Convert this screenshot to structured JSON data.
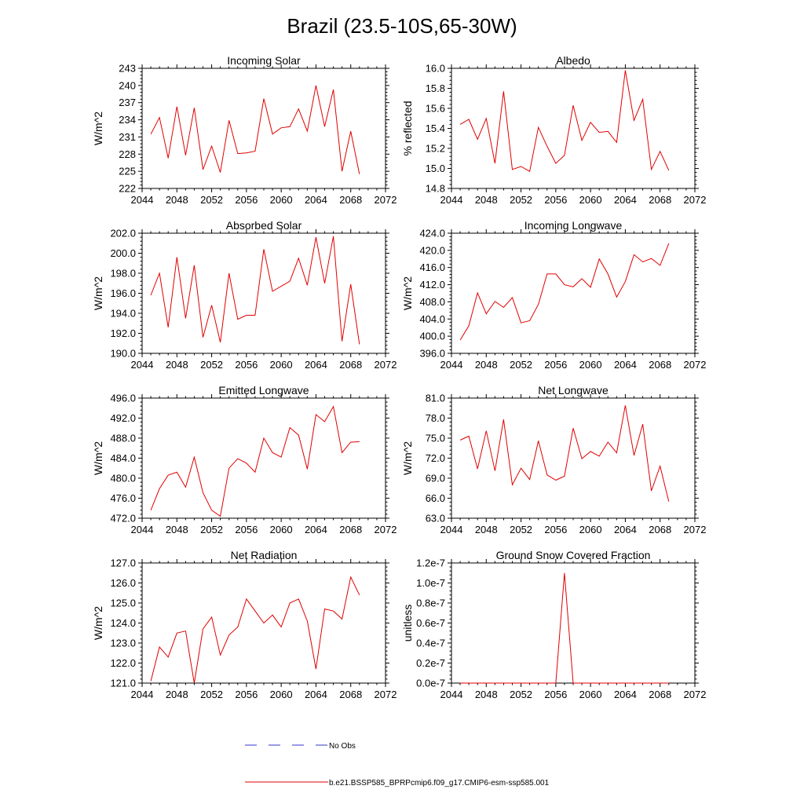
{
  "figure_title": "Brazil (23.5-10S,65-30W)",
  "legend": {
    "entries": [
      {
        "label": "No Obs",
        "color": "#3333cc",
        "dash": true
      },
      {
        "label": "b.e21.BSSP585_BPRPcmip6.f09_g17.CMIP6-esm-ssp585.001",
        "color": "#e00000",
        "dash": false
      }
    ]
  },
  "colors": {
    "series": "#e00000",
    "obs": "#3333cc"
  },
  "chart_data": [
    {
      "type": "line",
      "title": "Incoming Solar",
      "ylabel": "W/m^2",
      "xlim": [
        2044,
        2072
      ],
      "ylim": [
        222,
        243
      ],
      "xticks": [
        2044,
        2048,
        2052,
        2056,
        2060,
        2064,
        2068,
        2072
      ],
      "yticks": [
        "222",
        "225",
        "228",
        "231",
        "234",
        "237",
        "240",
        "243"
      ],
      "x": [
        2045,
        2046,
        2047,
        2048,
        2049,
        2050,
        2051,
        2052,
        2053,
        2054,
        2055,
        2056,
        2057,
        2058,
        2059,
        2060,
        2061,
        2062,
        2063,
        2064,
        2065,
        2066,
        2067,
        2068,
        2069
      ],
      "y": [
        231.5,
        234.4,
        227.3,
        236.3,
        227.8,
        236.1,
        225.3,
        229.4,
        224.8,
        233.9,
        228.1,
        228.2,
        228.5,
        237.7,
        231.5,
        232.6,
        232.8,
        235.9,
        232.0,
        240.0,
        232.8,
        239.3,
        225.0,
        232.0,
        224.5
      ]
    },
    {
      "type": "line",
      "title": "Albedo",
      "ylabel": "% reflected",
      "xlim": [
        2044,
        2072
      ],
      "ylim": [
        14.8,
        16.0
      ],
      "xticks": [
        2044,
        2048,
        2052,
        2056,
        2060,
        2064,
        2068,
        2072
      ],
      "yticks": [
        "14.8",
        "15.0",
        "15.2",
        "15.4",
        "15.6",
        "15.8",
        "16.0"
      ],
      "x": [
        2045,
        2046,
        2047,
        2048,
        2049,
        2050,
        2051,
        2052,
        2053,
        2054,
        2055,
        2056,
        2057,
        2058,
        2059,
        2060,
        2061,
        2062,
        2063,
        2064,
        2065,
        2066,
        2067,
        2068,
        2069
      ],
      "y": [
        15.44,
        15.49,
        15.29,
        15.5,
        15.05,
        15.77,
        14.99,
        15.02,
        14.97,
        15.41,
        15.22,
        15.05,
        15.13,
        15.63,
        15.28,
        15.46,
        15.36,
        15.37,
        15.26,
        15.98,
        15.48,
        15.69,
        14.99,
        15.17,
        14.98
      ]
    },
    {
      "type": "line",
      "title": "Absorbed Solar",
      "ylabel": "W/m^2",
      "xlim": [
        2044,
        2072
      ],
      "ylim": [
        190,
        202
      ],
      "xticks": [
        2044,
        2048,
        2052,
        2056,
        2060,
        2064,
        2068,
        2072
      ],
      "yticks": [
        "190.0",
        "192.0",
        "194.0",
        "196.0",
        "198.0",
        "200.0",
        "202.0"
      ],
      "x": [
        2045,
        2046,
        2047,
        2048,
        2049,
        2050,
        2051,
        2052,
        2053,
        2054,
        2055,
        2056,
        2057,
        2058,
        2059,
        2060,
        2061,
        2062,
        2063,
        2064,
        2065,
        2066,
        2067,
        2068,
        2069
      ],
      "y": [
        195.8,
        198.0,
        192.6,
        199.6,
        193.5,
        198.8,
        191.6,
        194.8,
        191.1,
        198.0,
        193.4,
        193.8,
        193.8,
        200.4,
        196.2,
        196.7,
        197.2,
        199.5,
        196.8,
        201.6,
        197.0,
        201.7,
        191.2,
        196.9,
        190.9
      ]
    },
    {
      "type": "line",
      "title": "Incoming Longwave",
      "ylabel": "W/m^2",
      "xlim": [
        2044,
        2072
      ],
      "ylim": [
        396,
        424
      ],
      "xticks": [
        2044,
        2048,
        2052,
        2056,
        2060,
        2064,
        2068,
        2072
      ],
      "yticks": [
        "396.0",
        "400.0",
        "404.0",
        "408.0",
        "412.0",
        "416.0",
        "420.0",
        "424.0"
      ],
      "x": [
        2045,
        2046,
        2047,
        2048,
        2049,
        2050,
        2051,
        2052,
        2053,
        2054,
        2055,
        2056,
        2057,
        2058,
        2059,
        2060,
        2061,
        2062,
        2063,
        2064,
        2065,
        2066,
        2067,
        2068,
        2069
      ],
      "y": [
        399.1,
        402.4,
        410.1,
        405.2,
        408.1,
        406.7,
        409.0,
        403.1,
        403.6,
        407.4,
        414.5,
        414.5,
        412.0,
        411.5,
        413.4,
        411.4,
        418.0,
        414.5,
        409.1,
        412.7,
        419.0,
        417.3,
        418.1,
        416.5,
        421.6
      ]
    },
    {
      "type": "line",
      "title": "Emitted Longwave",
      "ylabel": "W/m^2",
      "xlim": [
        2044,
        2072
      ],
      "ylim": [
        472,
        496
      ],
      "xticks": [
        2044,
        2048,
        2052,
        2056,
        2060,
        2064,
        2068,
        2072
      ],
      "yticks": [
        "472.0",
        "476.0",
        "480.0",
        "484.0",
        "488.0",
        "492.0",
        "496.0"
      ],
      "x": [
        2045,
        2046,
        2047,
        2048,
        2049,
        2050,
        2051,
        2052,
        2053,
        2054,
        2055,
        2056,
        2057,
        2058,
        2059,
        2060,
        2061,
        2062,
        2063,
        2064,
        2065,
        2066,
        2067,
        2068,
        2069
      ],
      "y": [
        473.6,
        477.9,
        480.6,
        481.2,
        478.2,
        484.2,
        477.1,
        473.6,
        472.4,
        482.0,
        483.9,
        483.0,
        481.2,
        488.0,
        485.1,
        484.2,
        490.1,
        488.6,
        481.8,
        492.7,
        491.3,
        494.3,
        485.1,
        487.2,
        487.3
      ]
    },
    {
      "type": "line",
      "title": "Net Longwave",
      "ylabel": "W/m^2",
      "xlim": [
        2044,
        2072
      ],
      "ylim": [
        63,
        81
      ],
      "xticks": [
        2044,
        2048,
        2052,
        2056,
        2060,
        2064,
        2068,
        2072
      ],
      "yticks": [
        "63.0",
        "66.0",
        "69.0",
        "72.0",
        "75.0",
        "78.0",
        "81.0"
      ],
      "x": [
        2045,
        2046,
        2047,
        2048,
        2049,
        2050,
        2051,
        2052,
        2053,
        2054,
        2055,
        2056,
        2057,
        2058,
        2059,
        2060,
        2061,
        2062,
        2063,
        2064,
        2065,
        2066,
        2067,
        2068,
        2069
      ],
      "y": [
        74.7,
        75.3,
        70.4,
        76.1,
        70.1,
        77.8,
        68.0,
        70.5,
        68.8,
        74.6,
        69.5,
        68.7,
        69.3,
        76.5,
        71.9,
        73.0,
        72.3,
        74.4,
        72.8,
        79.9,
        72.4,
        77.1,
        67.1,
        70.8,
        65.5
      ]
    },
    {
      "type": "line",
      "title": "Net Radiation",
      "ylabel": "W/m^2",
      "xlim": [
        2044,
        2072
      ],
      "ylim": [
        121,
        127
      ],
      "xticks": [
        2044,
        2048,
        2052,
        2056,
        2060,
        2064,
        2068,
        2072
      ],
      "yticks": [
        "121.0",
        "122.0",
        "123.0",
        "124.0",
        "125.0",
        "126.0",
        "127.0"
      ],
      "x": [
        2045,
        2046,
        2047,
        2048,
        2049,
        2050,
        2051,
        2052,
        2053,
        2054,
        2055,
        2056,
        2057,
        2058,
        2059,
        2060,
        2061,
        2062,
        2063,
        2064,
        2065,
        2066,
        2067,
        2068,
        2069
      ],
      "y": [
        121.1,
        122.8,
        122.3,
        123.5,
        123.6,
        121.0,
        123.7,
        124.3,
        122.4,
        123.4,
        123.8,
        125.2,
        124.6,
        124.0,
        124.4,
        123.8,
        125.0,
        125.2,
        124.1,
        121.7,
        124.7,
        124.6,
        124.2,
        126.3,
        125.4
      ]
    },
    {
      "type": "line",
      "title": "Ground Snow Covered Fraction",
      "ylabel": "unitless",
      "xlim": [
        2044,
        2072
      ],
      "ylim": [
        0,
        1.2e-07
      ],
      "xticks": [
        2044,
        2048,
        2052,
        2056,
        2060,
        2064,
        2068,
        2072
      ],
      "yticks": [
        "0.0e-7",
        "0.2e-7",
        "0.4e-7",
        "0.6e-7",
        "0.8e-7",
        "1.0e-7",
        "1.2e-7"
      ],
      "x": [
        2045,
        2046,
        2047,
        2048,
        2049,
        2050,
        2051,
        2052,
        2053,
        2054,
        2055,
        2056,
        2057,
        2058,
        2059,
        2060,
        2061,
        2062,
        2063,
        2064,
        2065,
        2066,
        2067,
        2068,
        2069
      ],
      "y": [
        0,
        0,
        0,
        0,
        0,
        0,
        0,
        0,
        0,
        0,
        0,
        0,
        1.1e-07,
        0,
        0,
        0,
        0,
        0,
        0,
        0,
        0,
        0,
        0,
        0,
        0
      ]
    }
  ]
}
